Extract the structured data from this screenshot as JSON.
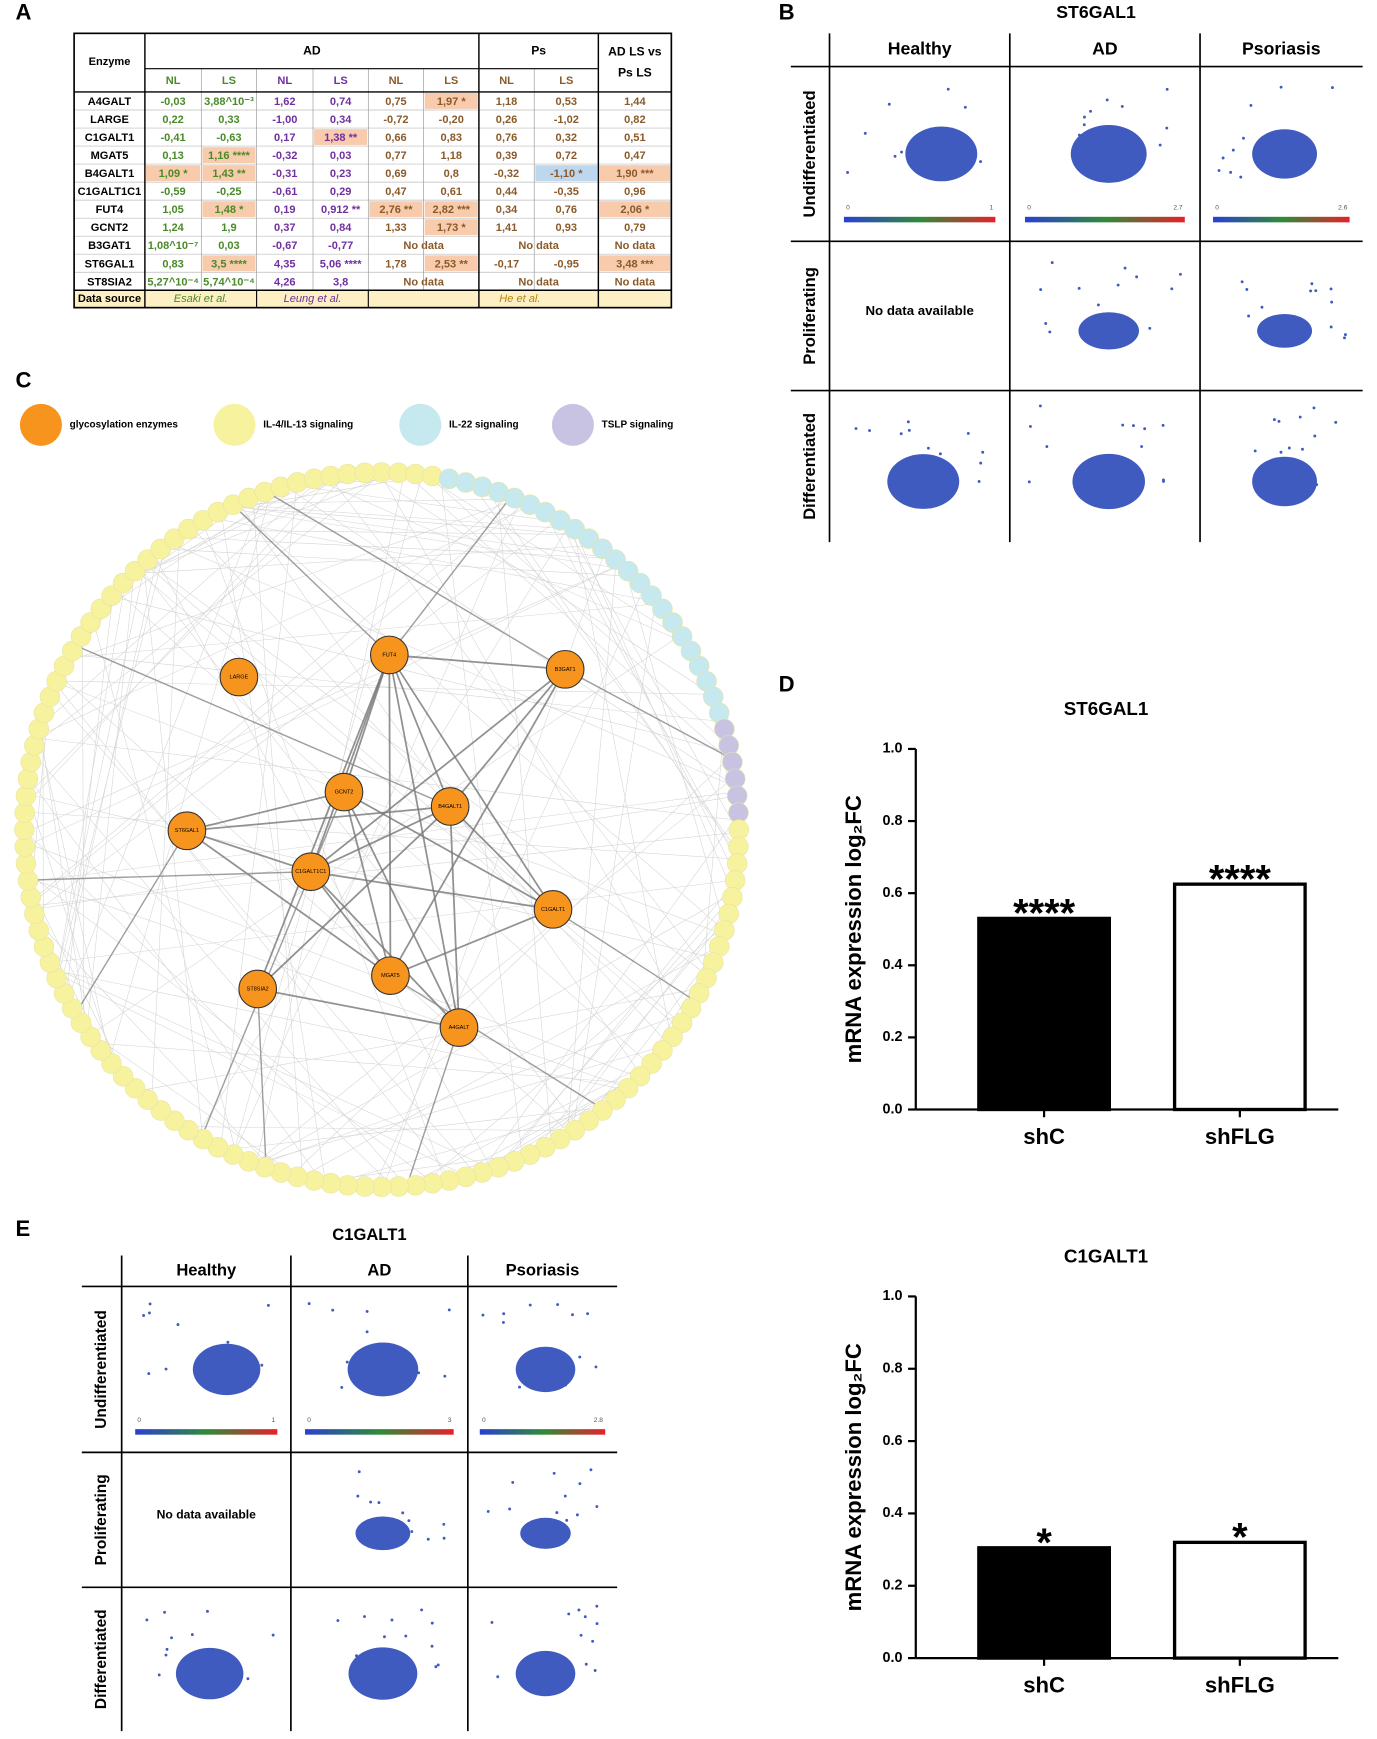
{
  "panel_labels": [
    "A",
    "B",
    "C",
    "D",
    "E"
  ],
  "table": {
    "header": [
      "Enzyme",
      "AD",
      "Ps"
    ],
    "last_header": [
      "AD LS vs",
      "Ps LS"
    ],
    "subheader": [
      "NL",
      "LS",
      "NL",
      "LS",
      "NL",
      "LS",
      "NL",
      "LS"
    ],
    "rows": [
      [
        "A4GALT",
        "-0,03",
        "3,88^10⁻³",
        "1,62",
        "0,74",
        "0,75",
        "1,97 *",
        "1,18",
        "0,53",
        "1,44"
      ],
      [
        "LARGE",
        "0,22",
        "0,33",
        "-1,00",
        "0,34",
        "-0,72",
        "-0,20",
        "0,26",
        "-1,02",
        "0,82"
      ],
      [
        "C1GALT1",
        "-0,41",
        "-0,63",
        "0,17",
        "1,38 **",
        "0,66",
        "0,83",
        "0,76",
        "0,32",
        "0,51"
      ],
      [
        "MGAT5",
        "0,13",
        "1,16 ****",
        "-0,32",
        "0,03",
        "0,77",
        "1,18",
        "0,39",
        "0,72",
        "0,47"
      ],
      [
        "B4GALT1",
        "1,09 *",
        "1,43 **",
        "-0,31",
        "0,23",
        "0,69",
        "0,8",
        "-0,32",
        "-1,10 *",
        "1,90 ***"
      ],
      [
        "C1GALT1C1",
        "-0,59",
        "-0,25",
        "-0,61",
        "0,29",
        "0,47",
        "0,61",
        "0,44",
        "-0,35",
        "0,96"
      ],
      [
        "FUT4",
        "1,05",
        "1,48 *",
        "0,19",
        "0,912 **",
        "2,76 **",
        "2,82 ***",
        "0,34",
        "0,76",
        "2,06 *"
      ],
      [
        "GCNT2",
        "1,24",
        "1,9",
        "0,37",
        "0,84",
        "1,33",
        "1,73 *",
        "1,41",
        "0,93",
        "0,79"
      ],
      [
        "B3GAT1",
        "1,08^10⁻⁷",
        "0,03",
        "-0,67",
        "-0,77",
        "No data",
        "No data",
        "No data"
      ],
      [
        "ST6GAL1",
        "0,83",
        "3,5 ****",
        "4,35",
        "5,06 ****",
        "1,78",
        "2,53 **",
        "-0,17",
        "-0,95",
        "3,48 ***"
      ],
      [
        "ST8SIA2",
        "5,27^10⁻⁴",
        "5,74^10⁻⁴",
        "4,26",
        "3,8",
        "No data",
        "No data",
        "No data"
      ]
    ],
    "source": [
      "Data source",
      "Esaki et al.",
      "Leung et al.",
      "He et al."
    ]
  },
  "umap_b": {
    "title": "ST6GAL1",
    "columns": [
      "Healthy",
      "AD",
      "Psoriasis"
    ],
    "rows": [
      "Undifferentiated",
      "Proliferating",
      "Differentiated"
    ],
    "no_data": "No data available",
    "scale_ticks": [
      [
        "0",
        "1"
      ],
      [
        "0",
        "2.7"
      ],
      [
        "0",
        "2.6"
      ]
    ]
  },
  "umap_e": {
    "title": "C1GALT1",
    "columns": [
      "Healthy",
      "AD",
      "Psoriasis"
    ],
    "rows": [
      "Undifferentiated",
      "Proliferating",
      "Differentiated"
    ],
    "no_data": "No data available",
    "scale_ticks": [
      [
        "0",
        "1"
      ],
      [
        "0",
        "3"
      ],
      [
        "0",
        "2.8"
      ]
    ]
  },
  "network": {
    "legend": [
      "glycosylation enzymes",
      "IL-4/IL-13 signaling",
      "IL-22 signaling",
      "TSLP signaling"
    ],
    "nodes": [
      "FUT4",
      "B3GAT1",
      "LARGE",
      "GCNT2",
      "B4GALT1",
      "ST6GAL1",
      "C1GALT1C1",
      "C1GALT1",
      "MGAT5",
      "ST8SIA2",
      "A4GALT"
    ]
  },
  "chart_data": [
    {
      "type": "bar",
      "title": "ST6GAL1",
      "categories": [
        "shC",
        "shFLG"
      ],
      "values": [
        0.53,
        0.625
      ],
      "colors": [
        "#000000",
        "#ffffff"
      ],
      "annotations": [
        "****",
        "****"
      ],
      "ylabel": "mRNA expression log₂FC",
      "ylim": [
        0,
        1
      ],
      "yticks": [
        {
          "value": 0,
          "label": "0.0"
        },
        0.2,
        0.4,
        0.6,
        0.8,
        {
          "value": 1,
          "label": "1.0"
        }
      ]
    },
    {
      "type": "bar",
      "title": "C1GALT1",
      "categories": [
        "shC",
        "shFLG"
      ],
      "values": [
        0.305,
        0.32
      ],
      "colors": [
        "#000000",
        "#ffffff"
      ],
      "annotations": [
        "*",
        "*"
      ],
      "ylabel": "mRNA expression log₂FC",
      "ylim": [
        0,
        1
      ],
      "yticks": [
        {
          "value": 0,
          "label": "0.0"
        },
        0.2,
        0.4,
        0.6,
        0.8,
        {
          "value": 1,
          "label": "1.0"
        }
      ]
    }
  ]
}
